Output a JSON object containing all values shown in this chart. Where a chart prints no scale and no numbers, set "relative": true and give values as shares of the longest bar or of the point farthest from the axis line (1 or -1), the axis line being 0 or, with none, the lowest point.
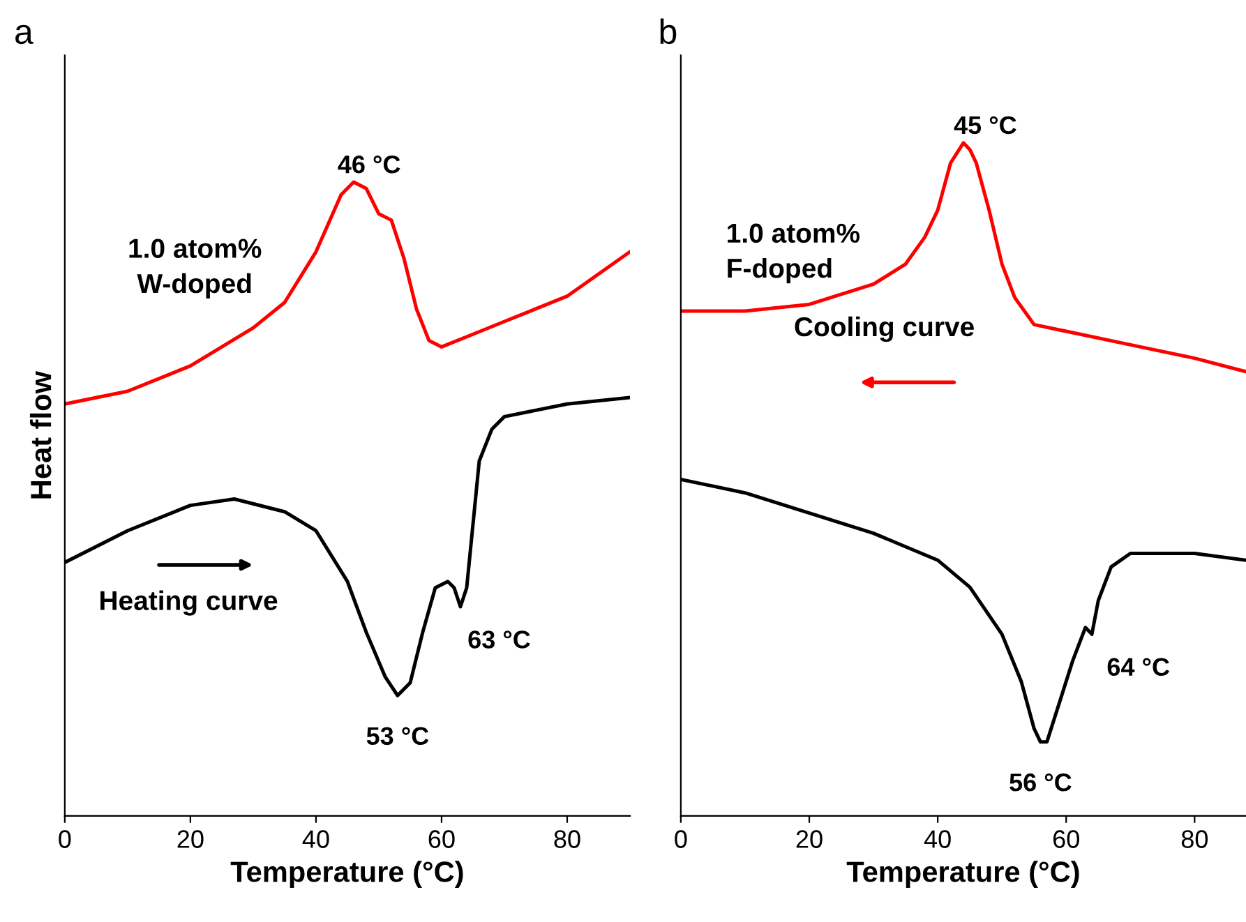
{
  "chart_data": [
    {
      "type": "line",
      "title": "a",
      "xlabel": "Temperature (°C)",
      "ylabel": "Heat flow",
      "relative": true,
      "xlim": [
        0,
        90
      ],
      "xticks": [
        0,
        20,
        40,
        60,
        80
      ],
      "tick_labels": "x",
      "grid": false,
      "legend": false,
      "line_style": "solid",
      "marker": "none",
      "series": [
        {
          "color": "#ff0000",
          "x": [
            0,
            10,
            20,
            30,
            35,
            40,
            44,
            46,
            48,
            50,
            52,
            54,
            56,
            58,
            60,
            65,
            70,
            80,
            90
          ],
          "values": [
            0.65,
            0.67,
            0.71,
            0.77,
            0.81,
            0.89,
            0.98,
            1.0,
            0.99,
            0.95,
            0.94,
            0.88,
            0.8,
            0.75,
            0.74,
            0.76,
            0.78,
            0.82,
            0.89
          ]
        },
        {
          "color": "#000000",
          "x": [
            0,
            10,
            20,
            27,
            35,
            40,
            45,
            48,
            51,
            53,
            55,
            57,
            59,
            61,
            62,
            63,
            64,
            65,
            66,
            68,
            70,
            80,
            90
          ],
          "values": [
            0.4,
            0.45,
            0.49,
            0.5,
            0.48,
            0.45,
            0.37,
            0.29,
            0.22,
            0.19,
            0.21,
            0.29,
            0.36,
            0.37,
            0.36,
            0.33,
            0.36,
            0.46,
            0.56,
            0.61,
            0.63,
            0.65,
            0.66
          ]
        }
      ],
      "annotations": [
        {
          "text": "46 °C",
          "x": 46,
          "y": 1.0
        },
        {
          "text": "53 °C",
          "x": 53,
          "y": 0.19
        },
        {
          "text": "63 °C",
          "x": 63,
          "y": 0.33
        },
        "1.0 atom%\nW-doped",
        "Heating curve"
      ]
    },
    {
      "type": "line",
      "title": "b",
      "xlabel": "Temperature (°C)",
      "relative": true,
      "xlim": [
        0,
        88
      ],
      "xticks": [
        0,
        20,
        40,
        60,
        80
      ],
      "tick_labels": "x",
      "grid": false,
      "legend": false,
      "line_style": "solid",
      "marker": "none",
      "series": [
        {
          "color": "#ff0000",
          "x": [
            0,
            10,
            20,
            30,
            35,
            38,
            40,
            42,
            44,
            45,
            46,
            48,
            50,
            52,
            55,
            60,
            70,
            80,
            88
          ],
          "values": [
            0.75,
            0.75,
            0.76,
            0.79,
            0.82,
            0.86,
            0.9,
            0.97,
            1.0,
            0.99,
            0.97,
            0.9,
            0.82,
            0.77,
            0.73,
            0.72,
            0.7,
            0.68,
            0.66
          ]
        },
        {
          "color": "#000000",
          "x": [
            0,
            10,
            20,
            30,
            40,
            45,
            50,
            53,
            55,
            56,
            57,
            59,
            61,
            63,
            64,
            65,
            67,
            70,
            80,
            88
          ],
          "values": [
            0.5,
            0.48,
            0.45,
            0.42,
            0.38,
            0.34,
            0.27,
            0.2,
            0.13,
            0.11,
            0.11,
            0.17,
            0.23,
            0.28,
            0.27,
            0.32,
            0.37,
            0.39,
            0.39,
            0.38
          ]
        }
      ],
      "annotations": [
        {
          "text": "45 °C",
          "x": 45,
          "y": 1.0
        },
        {
          "text": "56 °C",
          "x": 56,
          "y": 0.11
        },
        {
          "text": "64 °C",
          "x": 64,
          "y": 0.27
        },
        "1.0 atom%\nF-doped",
        "Cooling curve"
      ]
    }
  ]
}
